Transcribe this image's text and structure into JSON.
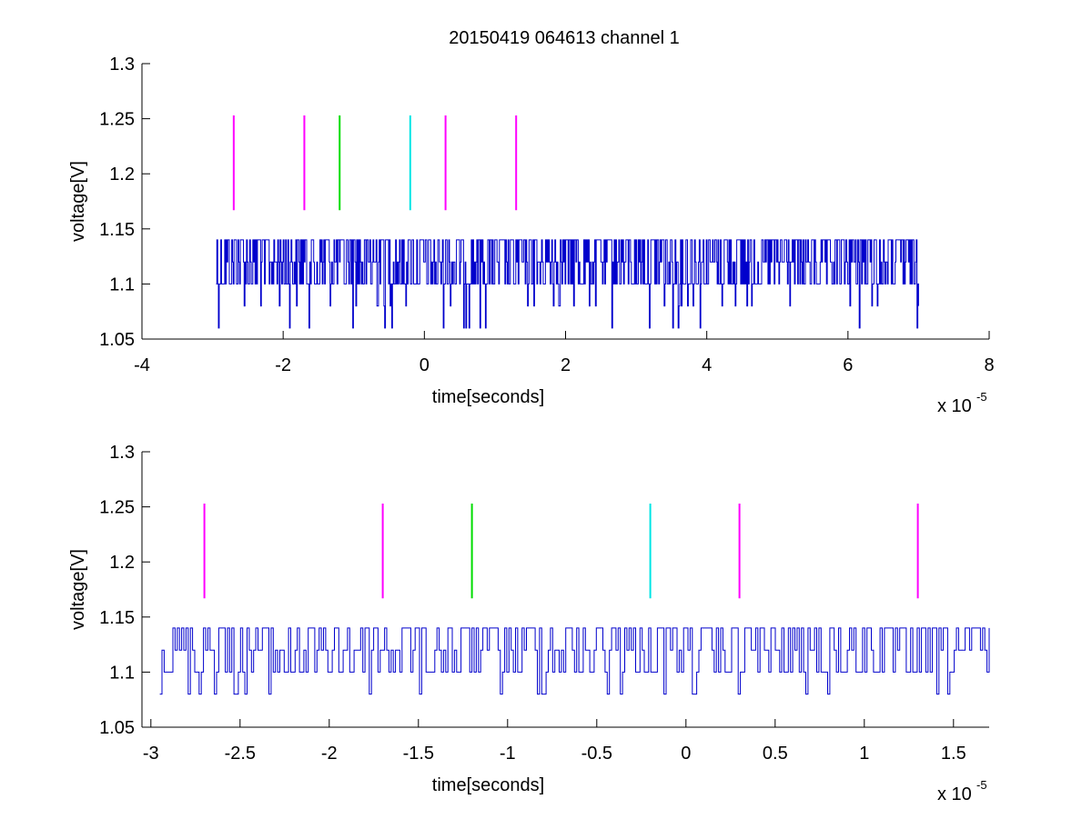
{
  "chart_data": [
    {
      "type": "line",
      "title": "20150419 064613 channel 1",
      "xlabel": "time[seconds]",
      "ylabel": "voltage[V]",
      "x_multiplier_label": "x 10",
      "x_multiplier_exponent": "-5",
      "xlim": [
        -4,
        8
      ],
      "ylim": [
        1.05,
        1.3
      ],
      "xticks": [
        -4,
        -2,
        0,
        2,
        4,
        6,
        8
      ],
      "xtick_labels": [
        "-4",
        "-2",
        "0",
        "2",
        "4",
        "6",
        "8"
      ],
      "yticks": [
        1.05,
        1.1,
        1.15,
        1.2,
        1.25,
        1.3
      ],
      "ytick_labels": [
        "1.05",
        "1.1",
        "1.15",
        "1.2",
        "1.25",
        "1.3"
      ],
      "signal": {
        "color": "#0000cc",
        "x_start": -2.95,
        "x_end": 7.0,
        "levels": [
          1.06,
          1.08,
          1.1,
          1.12,
          1.14
        ],
        "description": "quantized noisy voltage trace"
      },
      "markers": [
        {
          "x": -2.7,
          "y_range": [
            1.167,
            1.253
          ],
          "color": "#ff00ff"
        },
        {
          "x": -1.7,
          "y_range": [
            1.167,
            1.253
          ],
          "color": "#ff00ff"
        },
        {
          "x": -1.2,
          "y_range": [
            1.167,
            1.253
          ],
          "color": "#00dd00"
        },
        {
          "x": -0.2,
          "y_range": [
            1.167,
            1.253
          ],
          "color": "#00e5e5"
        },
        {
          "x": 0.3,
          "y_range": [
            1.167,
            1.253
          ],
          "color": "#ff00ff"
        },
        {
          "x": 1.3,
          "y_range": [
            1.167,
            1.253
          ],
          "color": "#ff00ff"
        }
      ]
    },
    {
      "type": "line",
      "title": "",
      "xlabel": "time[seconds]",
      "ylabel": "voltage[V]",
      "x_multiplier_label": "x 10",
      "x_multiplier_exponent": "-5",
      "xlim": [
        -3.05,
        1.7
      ],
      "ylim": [
        1.05,
        1.3
      ],
      "xticks": [
        -3,
        -2.5,
        -2,
        -1.5,
        -1,
        -0.5,
        0,
        0.5,
        1,
        1.5
      ],
      "xtick_labels": [
        "-3",
        "-2.5",
        "-2",
        "-1.5",
        "-1",
        "-0.5",
        "0",
        "0.5",
        "1",
        "1.5"
      ],
      "yticks": [
        1.05,
        1.1,
        1.15,
        1.2,
        1.25,
        1.3
      ],
      "ytick_labels": [
        "1.05",
        "1.1",
        "1.15",
        "1.2",
        "1.25",
        "1.3"
      ],
      "signal": {
        "color": "#0000cc",
        "x_start": -2.95,
        "x_end": 1.7,
        "levels": [
          1.06,
          1.08,
          1.1,
          1.12,
          1.14
        ],
        "description": "quantized noisy voltage trace"
      },
      "markers": [
        {
          "x": -2.7,
          "y_range": [
            1.167,
            1.253
          ],
          "color": "#ff00ff"
        },
        {
          "x": -1.7,
          "y_range": [
            1.167,
            1.253
          ],
          "color": "#ff00ff"
        },
        {
          "x": -1.2,
          "y_range": [
            1.167,
            1.253
          ],
          "color": "#00dd00"
        },
        {
          "x": -0.2,
          "y_range": [
            1.167,
            1.253
          ],
          "color": "#00e5e5"
        },
        {
          "x": 0.3,
          "y_range": [
            1.167,
            1.253
          ],
          "color": "#ff00ff"
        },
        {
          "x": 1.3,
          "y_range": [
            1.167,
            1.253
          ],
          "color": "#ff00ff"
        }
      ]
    }
  ]
}
